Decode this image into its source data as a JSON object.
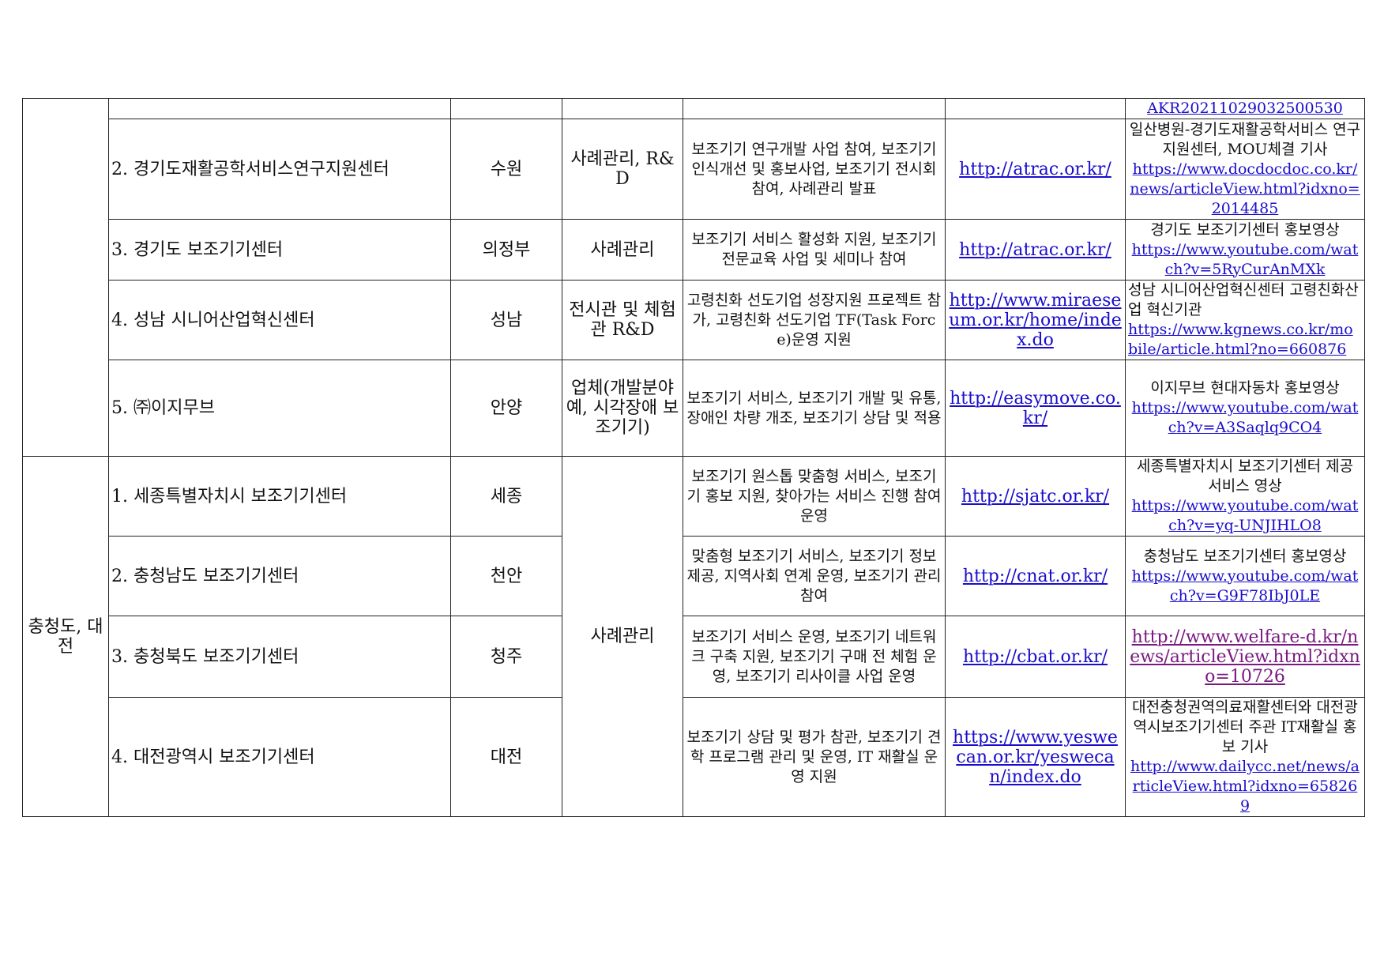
{
  "rows_top": {
    "link": "AKR20211029032500530"
  },
  "groups": [
    {
      "region": "",
      "rows": [
        {
          "name": "2. 경기도재활공학서비스연구지원센터",
          "city": "수원",
          "type": "사례관리, R&D",
          "desc": "보조기기 연구개발 사업 참여, 보조기기 인식개선 및 홍보사업, 보조기기 전시회 참여, 사례관리 발표",
          "site": "http://atrac.or.kr/",
          "ref_text": "일산병원-경기도재활공학서비스 연구지원센터, MOU체결 기사",
          "ref_link": "https://www.docdocdoc.co.kr/news/articleView.html?idxno=2014485"
        },
        {
          "name": "3. 경기도 보조기기센터",
          "city": "의정부",
          "type": "사례관리",
          "desc": "보조기기 서비스 활성화 지원, 보조기기 전문교육 사업 및 세미나 참여",
          "site": "http://atrac.or.kr/",
          "ref_text": "경기도 보조기기센터 홍보영상",
          "ref_link": "https://www.youtube.com/watch?v=5RyCurAnMXk"
        },
        {
          "name": "4. 성남 시니어산업혁신센터",
          "city": "성남",
          "type": "전시관 및 체험관 R&D",
          "desc": "고령친화 선도기업 성장지원 프로젝트 참가, 고령친화 선도기업 TF(Task Force)운영 지원",
          "site": "http://www.miraeseum.or.kr/home/index.do",
          "ref_text": "성남 시니어산업혁신센터 고령친화산업 혁신기관",
          "ref_link": "https://www.kgnews.co.kr/mobile/article.html?no=660876"
        },
        {
          "name": "5. ㈜이지무브",
          "city": "안양",
          "type": "업체(개발분야 예, 시각장애 보조기기)",
          "desc": "보조기기 서비스, 보조기기 개발 및 유통, 장애인 차량 개조, 보조기기 상담 및 적용",
          "site": "http://easymove.co.kr/",
          "ref_text": "이지무브 현대자동차 홍보영상",
          "ref_link": "https://www.youtube.com/watch?v=A3Saqlq9CO4"
        }
      ]
    },
    {
      "region": "충청도, 대전",
      "type": "사례관리",
      "rows": [
        {
          "name": "1. 세종특별자치시 보조기기센터",
          "city": "세종",
          "desc": "보조기기 원스톱 맞춤형 서비스, 보조기기 홍보 지원, 찾아가는 서비스 진행 참여 운영",
          "site": "http://sjatc.or.kr/",
          "ref_text": "세종특별자치시 보조기기센터 제공 서비스 영상",
          "ref_link": "https://www.youtube.com/watch?v=yq-UNJIHLO8"
        },
        {
          "name": "2. 충청남도 보조기기센터",
          "city": "천안",
          "desc": "맞춤형 보조기기 서비스, 보조기기 정보 제공, 지역사회 연계 운영, 보조기기 관리 참여",
          "site": "http://cnat.or.kr/",
          "ref_text": "충청남도 보조기기센터 홍보영상",
          "ref_link": "https://www.youtube.com/watch?v=G9F78IbJ0LE"
        },
        {
          "name": "3. 충청북도 보조기기센터",
          "city": "청주",
          "desc": "보조기기 서비스 운영, 보조기기 네트워크 구축 지원, 보조기기 구매 전 체험 운영, 보조기기 리사이클 사업 운영",
          "site": "http://cbat.or.kr/",
          "ref_text": "",
          "ref_link": "http://www.welfare-d.kr/news/articleView.html?idxno=10726"
        },
        {
          "name": "4. 대전광역시 보조기기센터",
          "city": "대전",
          "desc": "보조기기 상담 및 평가 참관, 보조기기 견학 프로그램 관리 및 운영, IT 재활실 운영 지원",
          "site": "https://www.yeswecan.or.kr/yeswecan/index.do",
          "ref_text": "대전충청권역의료재활센터와 대전광역시보조기기센터 주관 IT재활실 홍보 기사",
          "ref_link": "http://www.dailycc.net/news/articleView.html?idxno=658269"
        }
      ]
    }
  ],
  "colors": {
    "link": "#1a0dcc",
    "visited_link": "#7a1a80",
    "border": "#222222"
  }
}
